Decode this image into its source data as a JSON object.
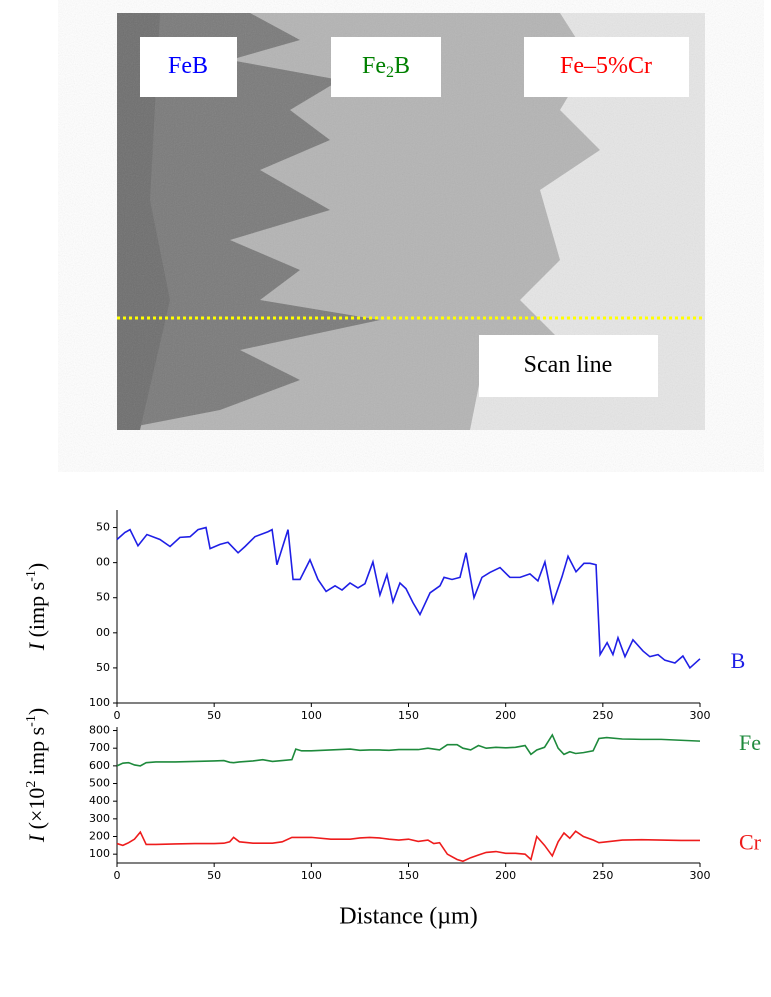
{
  "image": {
    "labels": [
      {
        "parts": [
          "FeB"
        ],
        "color": "#0000ff"
      },
      {
        "parts": [
          "Fe",
          "2",
          "B"
        ],
        "color": "#008000"
      },
      {
        "parts": [
          "Fe–5%Cr"
        ],
        "color": "#ff0000"
      },
      {
        "parts": [
          "Scan line"
        ],
        "color": "#000000"
      }
    ]
  },
  "chart_data": [
    {
      "type": "line",
      "y_label": [
        "I",
        " (imp s",
        "-1",
        ")"
      ],
      "x": [
        0,
        4.1,
        6.7,
        10.8,
        15.4,
        22.1,
        27.3,
        32.4,
        37.6,
        41.7,
        45.8,
        47.9,
        53.0,
        57.1,
        62.3,
        65.9,
        71.0,
        77.7,
        79.8,
        82.3,
        88.0,
        90.6,
        94.2,
        99.3,
        103.4,
        107.6,
        112.2,
        115.8,
        119.9,
        124.0,
        127.6,
        131.7,
        135.3,
        138.9,
        142.0,
        145.6,
        148.7,
        152.3,
        155.9,
        161.1,
        166.2,
        168.3,
        172.4,
        176.5,
        179.6,
        183.7,
        187.8,
        191.9,
        197.1,
        202.2,
        207.4,
        212.5,
        216.6,
        220.2,
        224.4,
        229.0,
        232.1,
        236.2,
        240.3,
        243.4,
        246.5,
        248.6,
        252.2,
        255.2,
        257.8,
        261.4,
        265.5,
        270.7,
        274.2,
        278.4,
        281.9,
        287.1,
        291.2,
        294.8,
        300
      ],
      "series": [
        {
          "name": "B",
          "color": "#1f1fe6",
          "values": [
            333,
            343,
            347,
            324,
            340,
            333,
            323,
            336,
            337,
            347,
            350,
            320,
            326,
            329,
            314,
            323,
            337,
            344,
            347,
            297,
            347,
            276,
            276,
            304,
            276,
            259,
            267,
            261,
            271,
            264,
            270,
            301,
            254,
            283,
            244,
            271,
            263,
            243,
            226,
            257,
            267,
            279,
            276,
            279,
            314,
            250,
            279,
            286,
            293,
            279,
            279,
            284,
            274,
            301,
            243,
            280,
            309,
            287,
            299,
            299,
            297,
            169,
            186,
            169,
            193,
            166,
            190,
            174,
            166,
            169,
            161,
            157,
            167,
            150,
            163
          ]
        }
      ],
      "xlim": [
        0,
        300
      ],
      "xticks": [
        0,
        50,
        100,
        150,
        200,
        250,
        300
      ],
      "ylim": [
        100,
        375
      ],
      "yticks": [
        {
          "value": 350,
          "label": "50"
        },
        {
          "value": 300,
          "label": "00"
        },
        {
          "value": 250,
          "label": "50"
        },
        {
          "value": 200,
          "label": "00"
        },
        {
          "value": 150,
          "label": "50"
        },
        100
      ]
    },
    {
      "type": "line",
      "y_label": [
        "I",
        " (×10",
        "2",
        " imp s",
        "-1",
        ")"
      ],
      "x_label": "Distance (µm)",
      "x": [
        0,
        3,
        6,
        9,
        12,
        15,
        20,
        30,
        40,
        50,
        55,
        58,
        60,
        63,
        70,
        75,
        80,
        85,
        90,
        92,
        95,
        100,
        110,
        120,
        125,
        130,
        135,
        140,
        145,
        150,
        155,
        160,
        163,
        166,
        170,
        175,
        178,
        182,
        186,
        190,
        195,
        200,
        205,
        210,
        213,
        216,
        220,
        224,
        227,
        230,
        233,
        236,
        240,
        245,
        248,
        252,
        260,
        270,
        280,
        290,
        300
      ],
      "series": [
        {
          "name": "Fe",
          "color": "#1e8a3c",
          "values": [
            600,
            615,
            618,
            605,
            600,
            618,
            622,
            622,
            625,
            628,
            630,
            620,
            618,
            622,
            628,
            635,
            625,
            630,
            635,
            695,
            685,
            685,
            690,
            695,
            688,
            690,
            690,
            688,
            692,
            692,
            692,
            700,
            695,
            690,
            720,
            720,
            700,
            690,
            715,
            700,
            705,
            702,
            705,
            715,
            665,
            690,
            705,
            775,
            700,
            665,
            680,
            670,
            675,
            685,
            755,
            760,
            752,
            750,
            750,
            745,
            740
          ]
        },
        {
          "name": "Cr",
          "color": "#ee1c1c",
          "values": [
            160,
            150,
            165,
            185,
            225,
            155,
            155,
            158,
            160,
            160,
            162,
            170,
            195,
            170,
            162,
            162,
            162,
            170,
            195,
            195,
            195,
            195,
            185,
            185,
            192,
            195,
            192,
            185,
            180,
            185,
            172,
            180,
            160,
            165,
            100,
            70,
            60,
            80,
            95,
            110,
            115,
            105,
            105,
            100,
            70,
            200,
            150,
            90,
            170,
            220,
            190,
            230,
            200,
            180,
            165,
            170,
            180,
            182,
            180,
            178,
            178
          ]
        }
      ],
      "xlim": [
        0,
        300
      ],
      "xticks": [
        0,
        50,
        100,
        150,
        200,
        250,
        300
      ],
      "ylim": [
        50,
        820
      ],
      "yticks": [
        100,
        200,
        300,
        400,
        500,
        600,
        700,
        800
      ]
    }
  ]
}
